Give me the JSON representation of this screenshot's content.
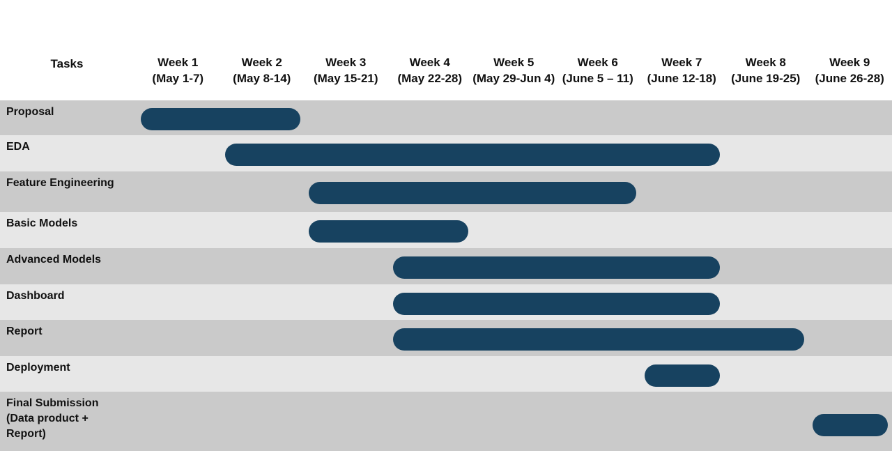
{
  "header": {
    "tasks_label": "Tasks",
    "weeks": [
      {
        "week": "Week 1",
        "dates": "(May 1-7)"
      },
      {
        "week": "Week 2",
        "dates": "(May 8-14)"
      },
      {
        "week": "Week 3",
        "dates": "(May 15-21)"
      },
      {
        "week": "Week 4",
        "dates": "(May 22-28)"
      },
      {
        "week": "Week 5",
        "dates": "(May 29-Jun 4)"
      },
      {
        "week": "Week 6",
        "dates": "(June 5 – 11)"
      },
      {
        "week": "Week 7",
        "dates": "(June 12-18)"
      },
      {
        "week": "Week 8",
        "dates": "(June 19-25)"
      },
      {
        "week": "Week 9",
        "dates": "(June 26-28)"
      }
    ]
  },
  "tasks": [
    {
      "label": "Proposal",
      "start_week": 1,
      "end_week": 2.9
    },
    {
      "label": "EDA",
      "start_week": 2,
      "end_week": 7.9
    },
    {
      "label": "Feature Engineering",
      "start_week": 3,
      "end_week": 6.9
    },
    {
      "label": "Basic Models",
      "start_week": 3,
      "end_week": 4.9
    },
    {
      "label": "Advanced Models",
      "start_week": 4,
      "end_week": 7.9
    },
    {
      "label": "Dashboard",
      "start_week": 4,
      "end_week": 7.9
    },
    {
      "label": "Report",
      "start_week": 4,
      "end_week": 8.9
    },
    {
      "label": "Deployment",
      "start_week": 7,
      "end_week": 7.9
    },
    {
      "label": "Final Submission (Data product + Report)",
      "start_week": 9,
      "end_week": 9.9
    }
  ],
  "colors": {
    "bar": "#174260",
    "row_dark": "#cacaca",
    "row_light": "#e7e7e7"
  }
}
